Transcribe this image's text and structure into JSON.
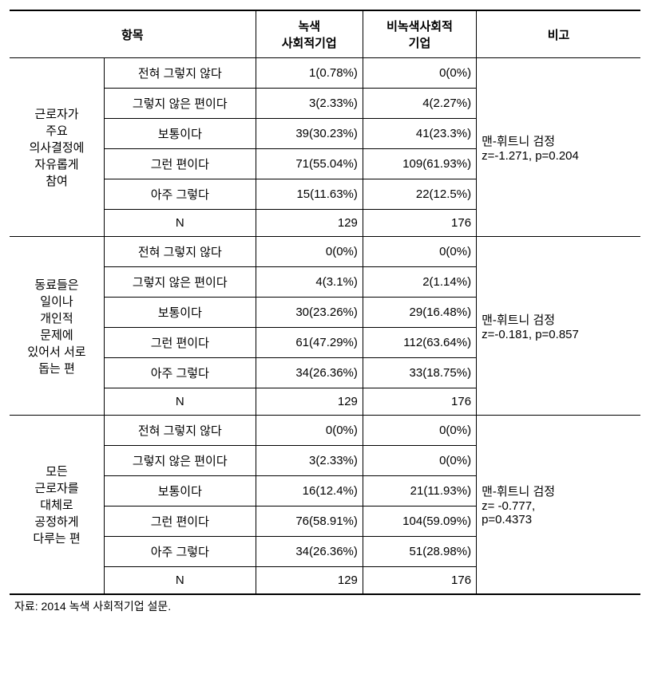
{
  "header": {
    "item": "항목",
    "green": "녹색\n사회적기업",
    "non_green": "비녹색사회적\n기업",
    "note": "비고"
  },
  "options": {
    "opt1": "전혀 그렇지 않다",
    "opt2": "그렇지 않은 편이다",
    "opt3": "보통이다",
    "opt4": "그런 편이다",
    "opt5": "아주 그렇다",
    "n": "N"
  },
  "sections": [
    {
      "category": "근로자가\n주요\n의사결정에\n자유롭게\n참여",
      "rows": {
        "r1g": "1(0.78%)",
        "r1n": "0(0%)",
        "r2g": "3(2.33%)",
        "r2n": "4(2.27%)",
        "r3g": "39(30.23%)",
        "r3n": "41(23.3%)",
        "r4g": "71(55.04%)",
        "r4n": "109(61.93%)",
        "r5g": "15(11.63%)",
        "r5n": "22(12.5%)",
        "ng": "129",
        "nn": "176"
      },
      "note": "맨-휘트니 검정\nz=-1.271, p=0.204"
    },
    {
      "category": "동료들은\n일이나\n개인적\n문제에\n있어서 서로\n돕는 편",
      "rows": {
        "r1g": "0(0%)",
        "r1n": "0(0%)",
        "r2g": "4(3.1%)",
        "r2n": "2(1.14%)",
        "r3g": "30(23.26%)",
        "r3n": "29(16.48%)",
        "r4g": "61(47.29%)",
        "r4n": "112(63.64%)",
        "r5g": "34(26.36%)",
        "r5n": "33(18.75%)",
        "ng": "129",
        "nn": "176"
      },
      "note": "맨-휘트니 검정\nz=-0.181, p=0.857"
    },
    {
      "category": "모든\n근로자를\n대체로\n공정하게\n다루는 편",
      "rows": {
        "r1g": "0(0%)",
        "r1n": "0(0%)",
        "r2g": "3(2.33%)",
        "r2n": "0(0%)",
        "r3g": "16(12.4%)",
        "r3n": "21(11.93%)",
        "r4g": "76(58.91%)",
        "r4n": "104(59.09%)",
        "r5g": "34(26.36%)",
        "r5n": "51(28.98%)",
        "ng": "129",
        "nn": "176"
      },
      "note": "맨-휘트니 검정\nz= -0.777,\np=0.4373"
    }
  ],
  "footnote": "자료: 2014 녹색 사회적기업 설문."
}
